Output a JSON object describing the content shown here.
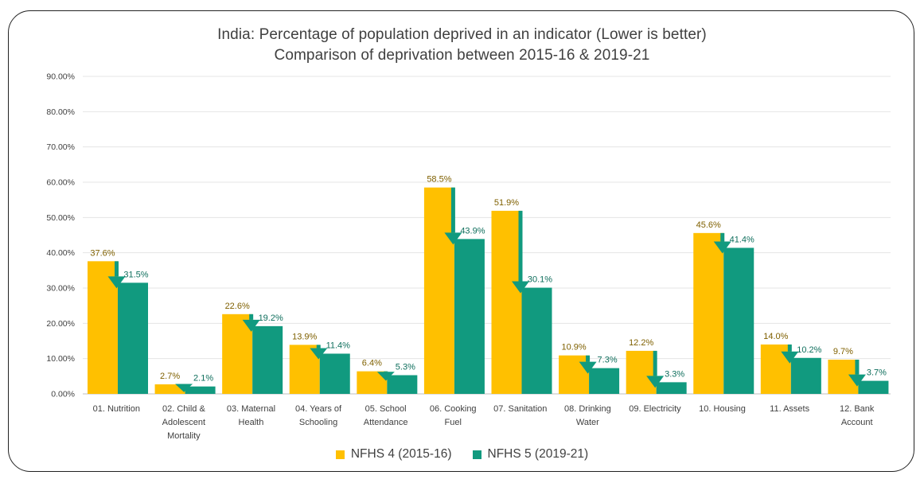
{
  "chart_data": {
    "type": "bar",
    "title": "India: Percentage of population deprived  in an indicator (Lower is better)",
    "subtitle": "Comparison of deprivation between 2015-16 & 2019-21",
    "xlabel": "",
    "ylabel": "",
    "ylim": [
      0,
      90
    ],
    "yticks": [
      "0.00%",
      "10.00%",
      "20.00%",
      "30.00%",
      "40.00%",
      "50.00%",
      "60.00%",
      "70.00%",
      "80.00%",
      "90.00%"
    ],
    "ytick_values": [
      0,
      10,
      20,
      30,
      40,
      50,
      60,
      70,
      80,
      90
    ],
    "grid": true,
    "legend_position": "bottom",
    "categories": [
      [
        "01. Nutrition"
      ],
      [
        "02. Child &",
        "Adolescent",
        "Mortality"
      ],
      [
        "03. Maternal",
        "Health"
      ],
      [
        "04. Years of",
        "Schooling"
      ],
      [
        "05. School",
        "Attendance"
      ],
      [
        "06. Cooking",
        "Fuel"
      ],
      [
        "07. Sanitation"
      ],
      [
        "08. Drinking",
        "Water"
      ],
      [
        "09. Electricity"
      ],
      [
        "10. Housing"
      ],
      [
        "11. Assets"
      ],
      [
        "12. Bank",
        "Account"
      ]
    ],
    "series": [
      {
        "name": "NFHS 4 (2015-16)",
        "color": "#FFC000",
        "label_color": "#7F6000",
        "values": [
          37.6,
          2.7,
          22.6,
          13.9,
          6.4,
          58.5,
          51.9,
          10.9,
          12.2,
          45.6,
          14.0,
          9.7
        ],
        "labels": [
          "37.6%",
          "2.7%",
          "22.6%",
          "13.9%",
          "6.4%",
          "58.5%",
          "51.9%",
          "10.9%",
          "12.2%",
          "45.6%",
          "14.0%",
          "9.7%"
        ]
      },
      {
        "name": "NFHS 5 (2019-21)",
        "color": "#119A7F",
        "label_color": "#0E6E5C",
        "values": [
          31.5,
          2.1,
          19.2,
          11.4,
          5.3,
          43.9,
          30.1,
          7.3,
          3.3,
          41.4,
          10.2,
          3.7
        ],
        "labels": [
          "31.5%",
          "2.1%",
          "19.2%",
          "11.4%",
          "5.3%",
          "43.9%",
          "30.1%",
          "7.3%",
          "3.3%",
          "41.4%",
          "10.2%",
          "3.7%"
        ]
      }
    ],
    "annotations": "down-arrows-showing-change"
  }
}
